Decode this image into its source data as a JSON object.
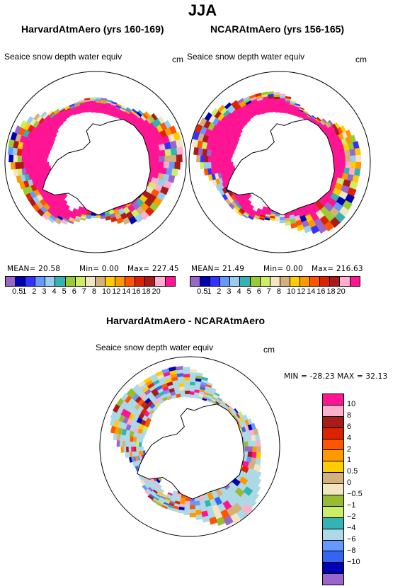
{
  "season": "JJA",
  "panels": [
    {
      "title": "HarvardAtmAero (yrs 160-169)",
      "variable": "Seaice snow depth water equiv",
      "units": "cm",
      "stats": {
        "mean": "MEAN=   20.58",
        "min": "Min=     0.00",
        "max": "Max=  227.45"
      }
    },
    {
      "title": "NCARAtmAero (yrs 156-165)",
      "variable": "Seaice snow depth water equiv",
      "units": "cm",
      "stats": {
        "mean": "MEAN=   21.49",
        "min": "Min=     0.00",
        "max": "Max=  216.63"
      }
    }
  ],
  "diff_panel": {
    "title": "HarvardAtmAero - NCARAtmAero",
    "variable": "Seaice snow depth water equiv",
    "units": "cm",
    "stats": "MIN = -28.23  MAX =  32.13"
  },
  "colorbar_abs": {
    "colors": [
      "#9966cc",
      "#0000b3",
      "#3333ff",
      "#6699ff",
      "#99ccee",
      "#33b3b3",
      "#99cc33",
      "#ccee66",
      "#f2e6c2",
      "#d4b07a",
      "#ffcc00",
      "#ff9900",
      "#ff5500",
      "#dd2200",
      "#aa1a1a",
      "#ffb0d0",
      "#ff1493"
    ],
    "labels": [
      "0.5",
      "1",
      "2",
      "3",
      "4",
      "5",
      "6",
      "7",
      "8",
      "10",
      "12",
      "14",
      "16",
      "18",
      "20"
    ]
  },
  "colorbar_diff": {
    "colors": [
      "#ff1493",
      "#ffb0c8",
      "#aa1a1a",
      "#dd2200",
      "#ff5500",
      "#ff9900",
      "#ffcc00",
      "#d4b07a",
      "#f2e6c2",
      "#99bb33",
      "#ccee66",
      "#33b3b3",
      "#add8e6",
      "#6699ff",
      "#3366ee",
      "#0000bb",
      "#9966cc"
    ],
    "labels": [
      "10",
      "8",
      "6",
      "4",
      "2",
      "1",
      "0.5",
      "0",
      "−0.5",
      "−1",
      "−2",
      "−4",
      "−6",
      "−8",
      "−10"
    ]
  },
  "colors": {
    "antarctica": "#ffffff",
    "coast": "#000000",
    "frame": "#000000"
  }
}
